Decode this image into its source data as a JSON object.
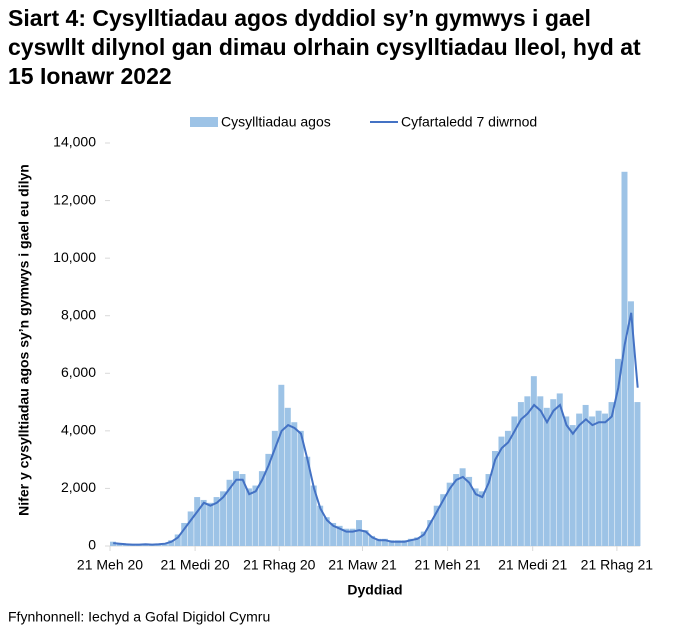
{
  "chart_data": {
    "type": "bar-line",
    "title": "Siart 4: Cysylltiadau agos dyddiol sy’n gymwys i gael cyswllt dilynol gan dimau olrhain cysylltiadau lleol, hyd at 15 Ionawr 2022",
    "x_label": "Dyddiad",
    "y_label": "Nifer y cysylltiadau agos sy’n gymwys i gael eu dilyn",
    "source": "Ffynhonnell: Iechyd a Gofal Digidol Cymru",
    "x": [
      "2020-06-21",
      "2020-06-28",
      "2020-07-05",
      "2020-07-12",
      "2020-07-19",
      "2020-07-26",
      "2020-08-02",
      "2020-08-09",
      "2020-08-16",
      "2020-08-23",
      "2020-08-30",
      "2020-09-06",
      "2020-09-13",
      "2020-09-20",
      "2020-09-27",
      "2020-10-04",
      "2020-10-11",
      "2020-10-18",
      "2020-10-25",
      "2020-11-01",
      "2020-11-08",
      "2020-11-15",
      "2020-11-22",
      "2020-11-29",
      "2020-12-06",
      "2020-12-13",
      "2020-12-20",
      "2020-12-27",
      "2021-01-03",
      "2021-01-10",
      "2021-01-17",
      "2021-01-24",
      "2021-01-31",
      "2021-02-07",
      "2021-02-14",
      "2021-02-21",
      "2021-02-28",
      "2021-03-07",
      "2021-03-14",
      "2021-03-21",
      "2021-03-28",
      "2021-04-04",
      "2021-04-11",
      "2021-04-18",
      "2021-04-25",
      "2021-05-02",
      "2021-05-09",
      "2021-05-16",
      "2021-05-23",
      "2021-05-30",
      "2021-06-06",
      "2021-06-13",
      "2021-06-20",
      "2021-06-27",
      "2021-07-04",
      "2021-07-11",
      "2021-07-18",
      "2021-07-25",
      "2021-08-01",
      "2021-08-08",
      "2021-08-15",
      "2021-08-22",
      "2021-08-29",
      "2021-09-05",
      "2021-09-12",
      "2021-09-19",
      "2021-09-26",
      "2021-10-03",
      "2021-10-10",
      "2021-10-17",
      "2021-10-24",
      "2021-10-31",
      "2021-11-07",
      "2021-11-14",
      "2021-11-21",
      "2021-11-28",
      "2021-12-05",
      "2021-12-12",
      "2021-12-19",
      "2021-12-26",
      "2022-01-02",
      "2022-01-09"
    ],
    "series": [
      {
        "name": "Cysylltiadau agos",
        "kind": "bar",
        "color": "#9dc3e6",
        "values": [
          150,
          100,
          80,
          60,
          60,
          80,
          60,
          80,
          100,
          200,
          400,
          800,
          1200,
          1700,
          1600,
          1500,
          1700,
          1900,
          2300,
          2600,
          2500,
          2000,
          2100,
          2600,
          3200,
          4000,
          5600,
          4800,
          4300,
          4000,
          3100,
          2100,
          1400,
          1000,
          800,
          700,
          600,
          600,
          900,
          550,
          350,
          250,
          250,
          200,
          200,
          200,
          250,
          300,
          500,
          900,
          1400,
          1800,
          2200,
          2500,
          2700,
          2400,
          2000,
          1900,
          2500,
          3300,
          3800,
          4000,
          4500,
          5000,
          5200,
          5900,
          5200,
          4800,
          5100,
          5300,
          4500,
          4200,
          4600,
          4900,
          4500,
          4700,
          4600,
          5000,
          6500,
          13000,
          8500,
          5000
        ]
      },
      {
        "name": "Cyfartaledd 7 diwrnod",
        "kind": "line",
        "color": "#4472c4",
        "values": [
          100,
          80,
          60,
          50,
          50,
          60,
          50,
          60,
          80,
          150,
          300,
          600,
          900,
          1200,
          1500,
          1400,
          1500,
          1700,
          2000,
          2300,
          2300,
          1800,
          1900,
          2300,
          2800,
          3400,
          4000,
          4200,
          4100,
          3900,
          3000,
          2000,
          1300,
          900,
          700,
          600,
          500,
          500,
          550,
          500,
          300,
          200,
          200,
          150,
          150,
          150,
          200,
          250,
          400,
          800,
          1200,
          1600,
          2000,
          2300,
          2400,
          2200,
          1800,
          1700,
          2200,
          3000,
          3400,
          3600,
          4000,
          4400,
          4600,
          4900,
          4700,
          4300,
          4700,
          4900,
          4200,
          3900,
          4200,
          4400,
          4200,
          4300,
          4300,
          4500,
          5500,
          7000,
          8100,
          5500
        ]
      }
    ],
    "xlim": [
      "2020-06-21",
      "2022-01-15"
    ],
    "xticks": [
      {
        "value": "2020-06-21",
        "label": "21 Meh 20"
      },
      {
        "value": "2020-09-21",
        "label": "21 Medi 20"
      },
      {
        "value": "2020-12-21",
        "label": "21 Rhag 20"
      },
      {
        "value": "2021-03-21",
        "label": "21 Maw 21"
      },
      {
        "value": "2021-06-21",
        "label": "21 Meh 21"
      },
      {
        "value": "2021-09-21",
        "label": "21 Medi 21"
      },
      {
        "value": "2021-12-21",
        "label": "21 Rhag 21"
      }
    ],
    "ylim": [
      0,
      14000
    ],
    "yticks": [
      0,
      {
        "value": 2000,
        "label": "2,000"
      },
      {
        "value": 4000,
        "label": "4,000"
      },
      {
        "value": 6000,
        "label": "6,000"
      },
      {
        "value": 8000,
        "label": "8,000"
      },
      {
        "value": 10000,
        "label": "10,000"
      },
      {
        "value": 12000,
        "label": "12,000"
      },
      {
        "value": 14000,
        "label": "14,000"
      }
    ],
    "legend": "top"
  }
}
